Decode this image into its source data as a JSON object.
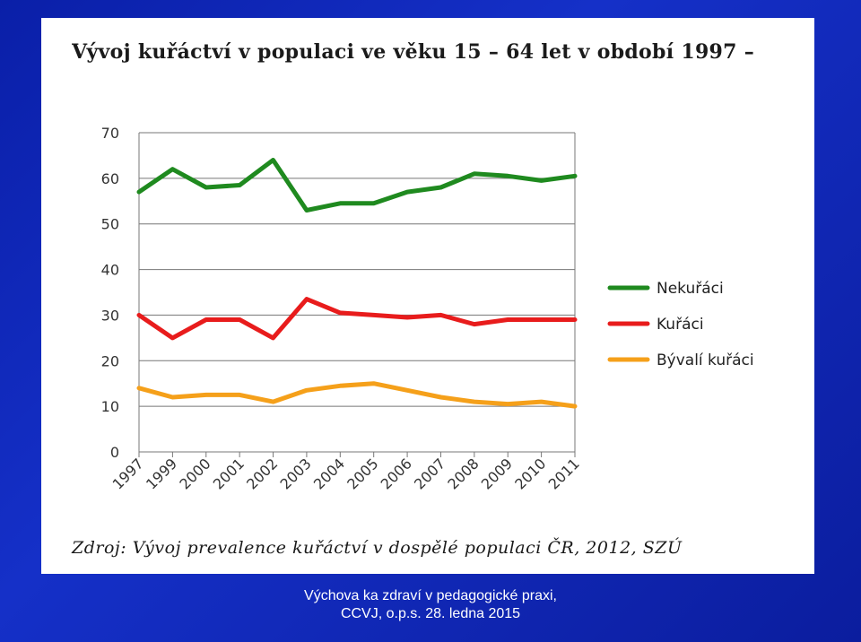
{
  "slide": {
    "title": "Vývoj kuřáctví v populaci ve věku 15 – 64 let v období 1997 –",
    "source": "Zdroj: Vývoj prevalence kuřáctví v dospělé populaci ČR, 2012, SZÚ",
    "footer_line1": "Výchova ka zdraví v pedagogické praxi,",
    "footer_line2": "CCVJ, o.p.s. 28. ledna 2015"
  },
  "colors": {
    "background": "#1530c8",
    "nekuraci": "#1f8a1f",
    "kuraci": "#e81c1c",
    "byvali": "#f5a01a"
  },
  "chart_data": {
    "type": "line",
    "title": "",
    "xlabel": "",
    "ylabel": "",
    "categories": [
      "1997",
      "1999",
      "2000",
      "2001",
      "2002",
      "2003",
      "2004",
      "2005",
      "2006",
      "2007",
      "2008",
      "2009",
      "2010",
      "2011"
    ],
    "ylim": [
      0,
      70
    ],
    "yticks": [
      0,
      10,
      20,
      30,
      40,
      50,
      60,
      70
    ],
    "grid": true,
    "legend_position": "right",
    "series": [
      {
        "name": "Nekuřáci",
        "color": "#1f8a1f",
        "values": [
          57,
          62,
          58,
          58.5,
          64,
          53,
          54.5,
          54.5,
          57,
          58,
          61,
          60.5,
          59.5,
          60.5
        ]
      },
      {
        "name": "Kuřáci",
        "color": "#e81c1c",
        "values": [
          30,
          25,
          29,
          29,
          25,
          33.5,
          30.5,
          30,
          29.5,
          30,
          28,
          29,
          29,
          29
        ]
      },
      {
        "name": "Bývalí kuřáci",
        "color": "#f5a01a",
        "values": [
          14,
          12,
          12.5,
          12.5,
          11,
          13.5,
          14.5,
          15,
          13.5,
          12,
          11,
          10.5,
          11,
          10
        ]
      }
    ]
  }
}
